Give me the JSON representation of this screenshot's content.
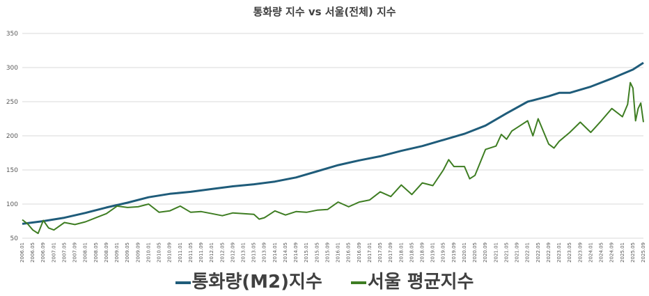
{
  "chart_data": {
    "type": "line",
    "title": "통화량 지수 vs 서울(전체) 지수",
    "xlabel": "",
    "ylabel": "",
    "ylim": [
      50,
      350
    ],
    "yticks": [
      50,
      100,
      150,
      200,
      250,
      300,
      350
    ],
    "grid": true,
    "legend_position": "bottom",
    "x_tick_labels": [
      "2006.01",
      "2006.05",
      "2006.09",
      "2007.01",
      "2007.05",
      "2007.09",
      "2008.01",
      "2008.05",
      "2008.09",
      "2009.01",
      "2009.05",
      "2009.09",
      "2010.01",
      "2010.05",
      "2010.09",
      "2011.01",
      "2011.05",
      "2011.09",
      "2012.01",
      "2012.05",
      "2012.09",
      "2013.01",
      "2013.05",
      "2013.09",
      "2014.01",
      "2014.05",
      "2014.09",
      "2015.01",
      "2015.05",
      "2015.09",
      "2016.01",
      "2016.05",
      "2016.09",
      "2017.01",
      "2017.05",
      "2017.09",
      "2018.01",
      "2018.05",
      "2018.09",
      "2019.01",
      "2019.05",
      "2019.09",
      "2020.01",
      "2020.05",
      "2020.09",
      "2021.01",
      "2021.05",
      "2021.09",
      "2022.01",
      "2022.05",
      "2022.09",
      "2023.01",
      "2023.05",
      "2023.09",
      "2024.01",
      "2024.05",
      "2024.09",
      "2025.01",
      "2025.05",
      "2025.09"
    ],
    "series": [
      {
        "name": "통화량(M2)지수",
        "color": "#1f5c7a",
        "points": [
          [
            "2006.01",
            71
          ],
          [
            "2006.09",
            75
          ],
          [
            "2007.05",
            80
          ],
          [
            "2008.01",
            87
          ],
          [
            "2008.09",
            95
          ],
          [
            "2009.05",
            102
          ],
          [
            "2010.01",
            110
          ],
          [
            "2010.09",
            115
          ],
          [
            "2011.05",
            118
          ],
          [
            "2012.01",
            122
          ],
          [
            "2012.09",
            126
          ],
          [
            "2013.05",
            129
          ],
          [
            "2014.01",
            133
          ],
          [
            "2014.09",
            139
          ],
          [
            "2015.05",
            148
          ],
          [
            "2016.01",
            157
          ],
          [
            "2016.09",
            164
          ],
          [
            "2017.05",
            170
          ],
          [
            "2018.01",
            178
          ],
          [
            "2018.09",
            185
          ],
          [
            "2019.05",
            194
          ],
          [
            "2020.01",
            203
          ],
          [
            "2020.09",
            215
          ],
          [
            "2021.05",
            233
          ],
          [
            "2022.01",
            250
          ],
          [
            "2022.09",
            258
          ],
          [
            "2023.01",
            263
          ],
          [
            "2023.05",
            263
          ],
          [
            "2024.01",
            272
          ],
          [
            "2024.09",
            284
          ],
          [
            "2025.05",
            297
          ],
          [
            "2025.09",
            307
          ]
        ]
      },
      {
        "name": "서울 평균지수",
        "color": "#3e7d22",
        "points": [
          [
            "2006.01",
            77
          ],
          [
            "2006.03",
            71
          ],
          [
            "2006.05",
            62
          ],
          [
            "2006.07",
            57
          ],
          [
            "2006.09",
            76
          ],
          [
            "2006.11",
            65
          ],
          [
            "2007.01",
            62
          ],
          [
            "2007.05",
            73
          ],
          [
            "2007.09",
            70
          ],
          [
            "2008.01",
            74
          ],
          [
            "2008.05",
            80
          ],
          [
            "2008.09",
            86
          ],
          [
            "2009.01",
            97
          ],
          [
            "2009.05",
            95
          ],
          [
            "2009.09",
            96
          ],
          [
            "2010.01",
            100
          ],
          [
            "2010.05",
            88
          ],
          [
            "2010.09",
            90
          ],
          [
            "2011.01",
            97
          ],
          [
            "2011.05",
            88
          ],
          [
            "2011.09",
            89
          ],
          [
            "2012.01",
            86
          ],
          [
            "2012.05",
            83
          ],
          [
            "2012.09",
            87
          ],
          [
            "2013.01",
            86
          ],
          [
            "2013.05",
            85
          ],
          [
            "2013.07",
            78
          ],
          [
            "2013.09",
            80
          ],
          [
            "2014.01",
            90
          ],
          [
            "2014.05",
            84
          ],
          [
            "2014.09",
            89
          ],
          [
            "2015.01",
            88
          ],
          [
            "2015.05",
            91
          ],
          [
            "2015.09",
            92
          ],
          [
            "2016.01",
            103
          ],
          [
            "2016.05",
            96
          ],
          [
            "2016.09",
            103
          ],
          [
            "2017.01",
            106
          ],
          [
            "2017.05",
            118
          ],
          [
            "2017.09",
            111
          ],
          [
            "2018.01",
            128
          ],
          [
            "2018.05",
            114
          ],
          [
            "2018.09",
            131
          ],
          [
            "2019.01",
            127
          ],
          [
            "2019.05",
            150
          ],
          [
            "2019.07",
            165
          ],
          [
            "2019.09",
            155
          ],
          [
            "2020.01",
            155
          ],
          [
            "2020.03",
            137
          ],
          [
            "2020.05",
            142
          ],
          [
            "2020.09",
            180
          ],
          [
            "2021.01",
            185
          ],
          [
            "2021.03",
            202
          ],
          [
            "2021.05",
            195
          ],
          [
            "2021.07",
            207
          ],
          [
            "2021.09",
            212
          ],
          [
            "2022.01",
            222
          ],
          [
            "2022.03",
            200
          ],
          [
            "2022.05",
            225
          ],
          [
            "2022.09",
            188
          ],
          [
            "2022.11",
            182
          ],
          [
            "2023.01",
            192
          ],
          [
            "2023.05",
            205
          ],
          [
            "2023.09",
            220
          ],
          [
            "2024.01",
            205
          ],
          [
            "2024.05",
            222
          ],
          [
            "2024.09",
            240
          ],
          [
            "2025.01",
            228
          ],
          [
            "2025.03",
            246
          ],
          [
            "2025.04",
            278
          ],
          [
            "2025.05",
            270
          ],
          [
            "2025.06",
            222
          ],
          [
            "2025.07",
            240
          ],
          [
            "2025.08",
            248
          ],
          [
            "2025.09",
            220
          ]
        ]
      }
    ]
  }
}
